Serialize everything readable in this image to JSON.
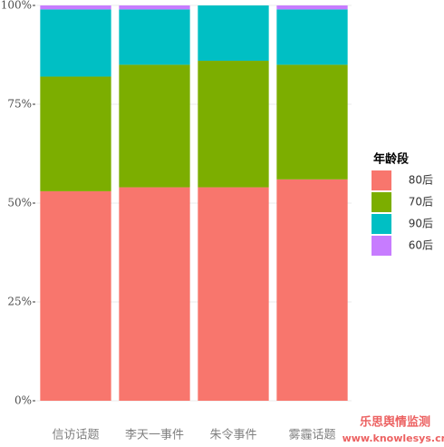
{
  "chart_data": {
    "type": "stacked_bar",
    "categories": [
      "信访话题",
      "李天一事件",
      "朱令事件",
      "雾霾话题"
    ],
    "series": [
      {
        "name": "80后",
        "color": "#F8766D",
        "values": [
          53,
          54,
          54,
          56
        ]
      },
      {
        "name": "70后",
        "color": "#7CAE00",
        "values": [
          29,
          31,
          32,
          29
        ]
      },
      {
        "name": "90后",
        "color": "#00BFC4",
        "values": [
          17,
          14,
          14,
          14
        ]
      },
      {
        "name": "60后",
        "color": "#C77CFF",
        "values": [
          1,
          1,
          0,
          1
        ]
      }
    ],
    "ylim": [
      0,
      100
    ],
    "yticks": [
      {
        "value": 0,
        "label": "0%"
      },
      {
        "value": 25,
        "label": "25%"
      },
      {
        "value": 50,
        "label": "50%"
      },
      {
        "value": 75,
        "label": "75%"
      },
      {
        "value": 100,
        "label": "100%"
      }
    ],
    "grid": true,
    "legend_title": "年龄段",
    "legend_position": "right",
    "watermark": [
      "乐思舆情监测",
      "www.knowlesys.cn"
    ]
  }
}
